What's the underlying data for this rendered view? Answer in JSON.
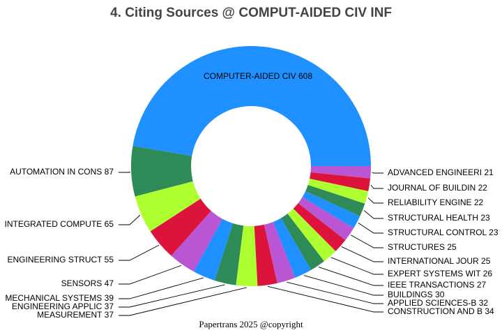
{
  "chart_data": {
    "type": "donut",
    "title": "4. Citing Sources @ COMPUT-AIDED CIV INF",
    "categories": [
      "COMPUTER-AIDED CIV",
      "AUTOMATION IN CONS",
      "INTEGRATED COMPUTE",
      "ENGINEERING STRUCT",
      "SENSORS",
      "MECHANICAL SYSTEMS",
      "ENGINEERING APPLIC",
      "MEASUREMENT",
      "CONSTRUCTION AND B",
      "APPLIED SCIENCES-B",
      "BUILDINGS",
      "IEEE TRANSACTIONS",
      "EXPERT SYSTEMS WIT",
      "INTERNATIONAL JOUR",
      "STRUCTURES",
      "STRUCTURAL CONTROL",
      "STRUCTURAL HEALTH",
      "RELIABILITY ENGINE",
      "JOURNAL OF BUILDIN",
      "ADVANCED ENGINEERI"
    ],
    "values": [
      608,
      87,
      65,
      55,
      47,
      39,
      37,
      37,
      34,
      32,
      30,
      27,
      26,
      25,
      25,
      23,
      23,
      22,
      22,
      21
    ],
    "colors": [
      "#1e90ff",
      "#2e8b57",
      "#adff2f",
      "#dc143c",
      "#ba55d3"
    ],
    "footer": "Papertrans 2025 @copyright"
  }
}
